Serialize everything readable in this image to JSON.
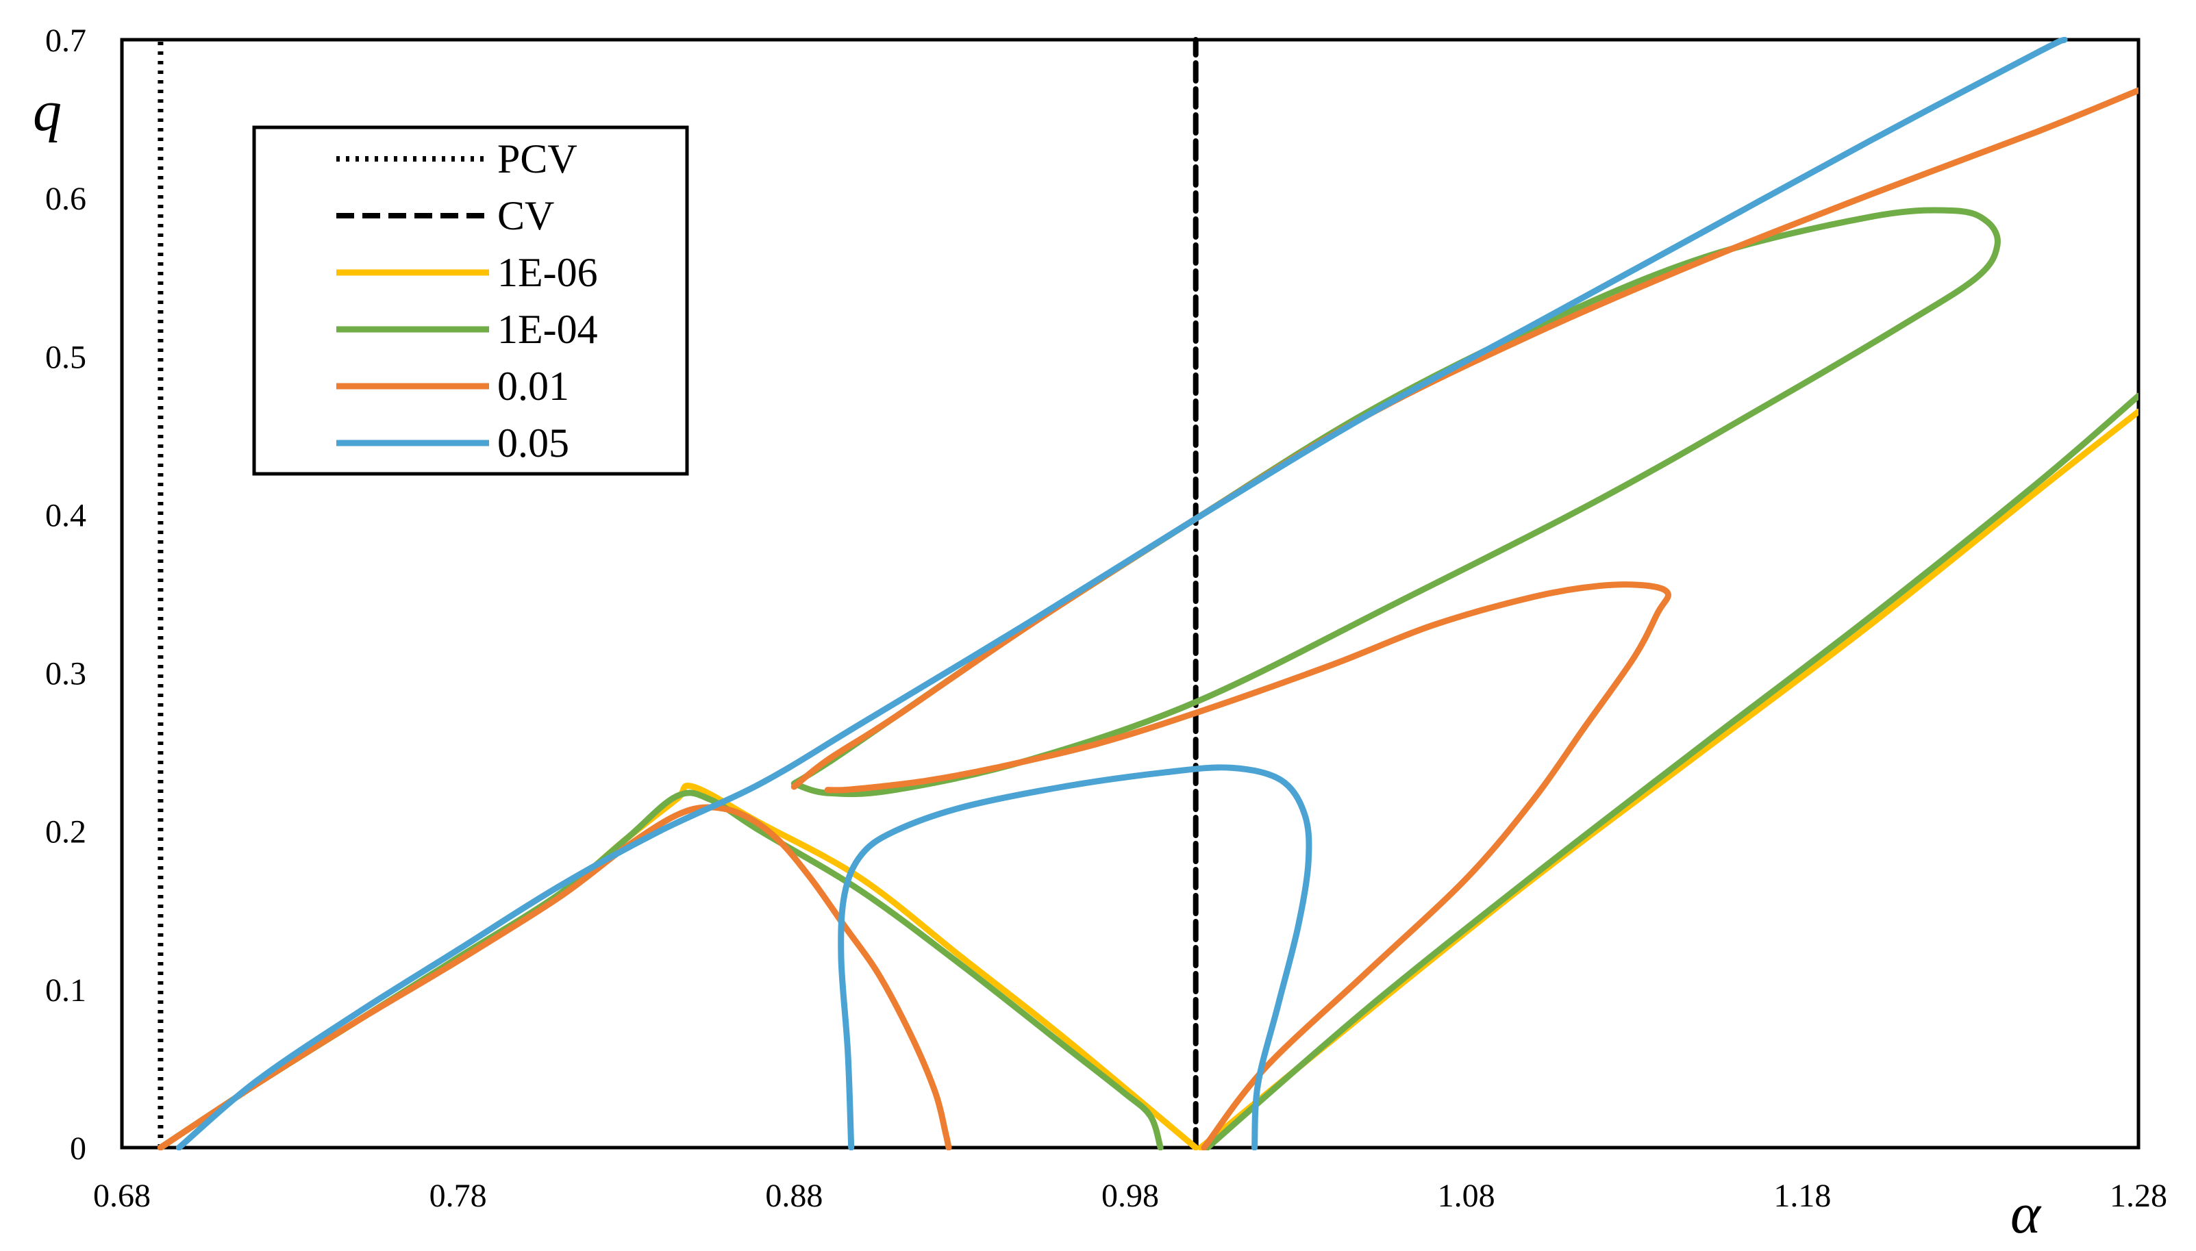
{
  "chart_data": {
    "type": "line",
    "xlabel": "α",
    "ylabel": "q",
    "xlim": [
      0.68,
      1.28
    ],
    "ylim": [
      0,
      0.7
    ],
    "xticks": [
      "0.68",
      "0.78",
      "0.88",
      "0.98",
      "1.08",
      "1.18",
      "1.28"
    ],
    "yticks": [
      "0",
      "0.1",
      "0.2",
      "0.3",
      "0.4",
      "0.5",
      "0.6",
      "0.7"
    ],
    "grid": false,
    "legend_position": "top-left",
    "series": [
      {
        "name": "PCV",
        "color": "#000000",
        "style": "dotted",
        "x": [
          0.6915,
          0.6915
        ],
        "y": [
          0,
          0.7
        ]
      },
      {
        "name": "CV",
        "color": "#000000",
        "style": "dashed",
        "x": [
          0.9995,
          0.9995
        ],
        "y": [
          0,
          0.7
        ]
      },
      {
        "name": "1E-06",
        "color": "#FFC000",
        "style": "solid",
        "segments": [
          {
            "x": [
              0.6915,
              0.72,
              0.75,
              0.78,
              0.81,
              0.83,
              0.845,
              0.85,
              0.87,
              0.9,
              0.93,
              0.96,
              0.9995
            ],
            "y": [
              0,
              0.04,
              0.08,
              0.12,
              0.16,
              0.195,
              0.22,
              0.228,
              0.205,
              0.17,
              0.12,
              0.07,
              0
            ]
          },
          {
            "x": [
              1.001,
              1.05,
              1.1,
              1.15,
              1.2,
              1.25,
              1.28
            ],
            "y": [
              0,
              0.085,
              0.17,
              0.25,
              0.33,
              0.415,
              0.465
            ]
          }
        ]
      },
      {
        "name": "1E-04",
        "color": "#70AD47",
        "style": "solid",
        "segments": [
          {
            "x": [
              0.6915,
              0.72,
              0.75,
              0.78,
              0.81,
              0.83,
              0.845,
              0.855,
              0.87,
              0.9,
              0.93,
              0.96,
              0.978,
              0.986,
              0.989
            ],
            "y": [
              0,
              0.04,
              0.08,
              0.12,
              0.16,
              0.195,
              0.222,
              0.22,
              0.2,
              0.162,
              0.115,
              0.065,
              0.035,
              0.02,
              0
            ]
          },
          {
            "x": [
              1.003,
              1.05,
              1.1,
              1.15,
              1.2,
              1.25,
              1.28
            ],
            "y": [
              0,
              0.087,
              0.172,
              0.254,
              0.335,
              0.42,
              0.475
            ]
          },
          {
            "x": [
              0.88,
              0.89,
              0.91,
              0.95,
              1.0,
              1.05,
              1.1,
              1.15,
              1.2,
              1.225,
              1.235,
              1.238,
              1.232,
              1.21,
              1.17,
              1.12,
              1.06,
              1.0,
              0.95,
              0.91,
              0.89,
              0.88
            ],
            "y": [
              0.23,
              0.243,
              0.272,
              0.33,
              0.398,
              0.464,
              0.518,
              0.562,
              0.588,
              0.592,
              0.585,
              0.57,
              0.55,
              0.52,
              0.47,
              0.41,
              0.345,
              0.282,
              0.245,
              0.226,
              0.224,
              0.23
            ]
          }
        ]
      },
      {
        "name": "0.01",
        "color": "#ED7D31",
        "style": "solid",
        "segments": [
          {
            "x": [
              0.6915,
              0.72,
              0.75,
              0.78,
              0.81,
              0.83,
              0.845,
              0.855,
              0.865,
              0.875,
              0.885,
              0.895,
              0.905,
              0.915,
              0.922,
              0.925,
              0.926
            ],
            "y": [
              0,
              0.04,
              0.08,
              0.118,
              0.158,
              0.19,
              0.21,
              0.215,
              0.21,
              0.195,
              0.17,
              0.14,
              0.11,
              0.07,
              0.035,
              0.01,
              0
            ]
          },
          {
            "x": [
              0.88,
              0.89,
              0.91,
              0.95,
              1.0,
              1.05,
              1.1,
              1.15,
              1.2,
              1.25,
              1.28
            ],
            "y": [
              0.228,
              0.245,
              0.272,
              0.33,
              0.398,
              0.462,
              0.514,
              0.56,
              0.602,
              0.642,
              0.668
            ]
          },
          {
            "x": [
              1.002,
              1.02,
              1.05,
              1.08,
              1.1,
              1.115,
              1.13,
              1.137,
              1.14,
              1.134,
              1.12,
              1.1,
              1.07,
              1.04,
              1.0,
              0.97,
              0.94,
              0.92,
              0.905,
              0.895,
              0.89
            ],
            "y": [
              0,
              0.05,
              0.11,
              0.17,
              0.22,
              0.265,
              0.31,
              0.338,
              0.35,
              0.355,
              0.355,
              0.348,
              0.33,
              0.305,
              0.275,
              0.255,
              0.24,
              0.232,
              0.228,
              0.226,
              0.226
            ]
          }
        ]
      },
      {
        "name": "0.05",
        "color": "#4BA3D3",
        "style": "solid",
        "segments": [
          {
            "x": [
              0.697,
              0.72,
              0.75,
              0.78,
              0.81,
              0.84,
              0.87,
              0.9,
              0.95,
              1.0,
              1.05,
              1.1,
              1.15,
              1.2,
              1.25,
              1.258
            ],
            "y": [
              0,
              0.042,
              0.085,
              0.125,
              0.165,
              0.2,
              0.23,
              0.268,
              0.332,
              0.398,
              0.462,
              0.52,
              0.578,
              0.636,
              0.692,
              0.7
            ]
          },
          {
            "x": [
              0.897,
              0.896,
              0.894,
              0.895,
              0.9,
              0.91,
              0.93,
              0.96,
              0.99,
              1.01,
              1.025,
              1.032,
              1.033,
              1.03,
              1.024,
              1.018,
              1.017
            ],
            "y": [
              0,
              0.06,
              0.12,
              0.16,
              0.185,
              0.2,
              0.215,
              0.228,
              0.237,
              0.24,
              0.232,
              0.21,
              0.18,
              0.14,
              0.09,
              0.04,
              0
            ]
          }
        ]
      }
    ]
  }
}
